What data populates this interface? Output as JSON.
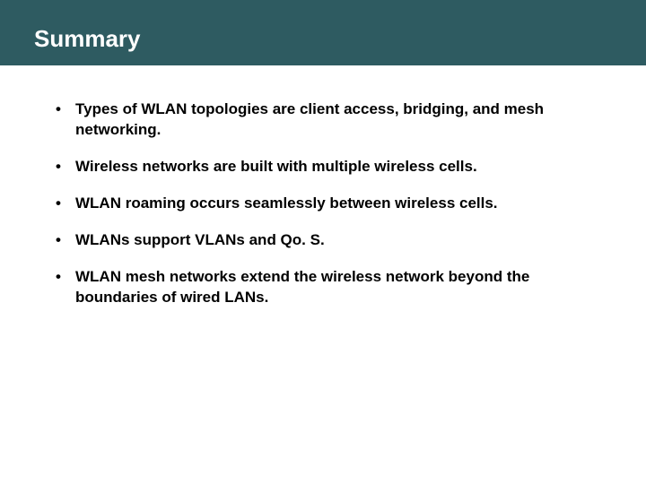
{
  "slide": {
    "title": "Summary",
    "title_bar_color": "#2e5b61",
    "title_text_color": "#ffffff",
    "title_fontsize": 26,
    "background_color": "#ffffff",
    "bullets": [
      "Types of WLAN topologies are client access, bridging, and mesh networking.",
      "Wireless networks are built with multiple wireless cells.",
      "WLAN roaming occurs seamlessly between wireless cells.",
      "WLANs support VLANs and Qo. S.",
      "WLAN mesh networks extend the wireless network beyond the boundaries of wired LANs."
    ],
    "bullet_fontsize": 17,
    "bullet_fontweight": "bold",
    "bullet_color": "#000000",
    "bullet_marker": "•"
  }
}
